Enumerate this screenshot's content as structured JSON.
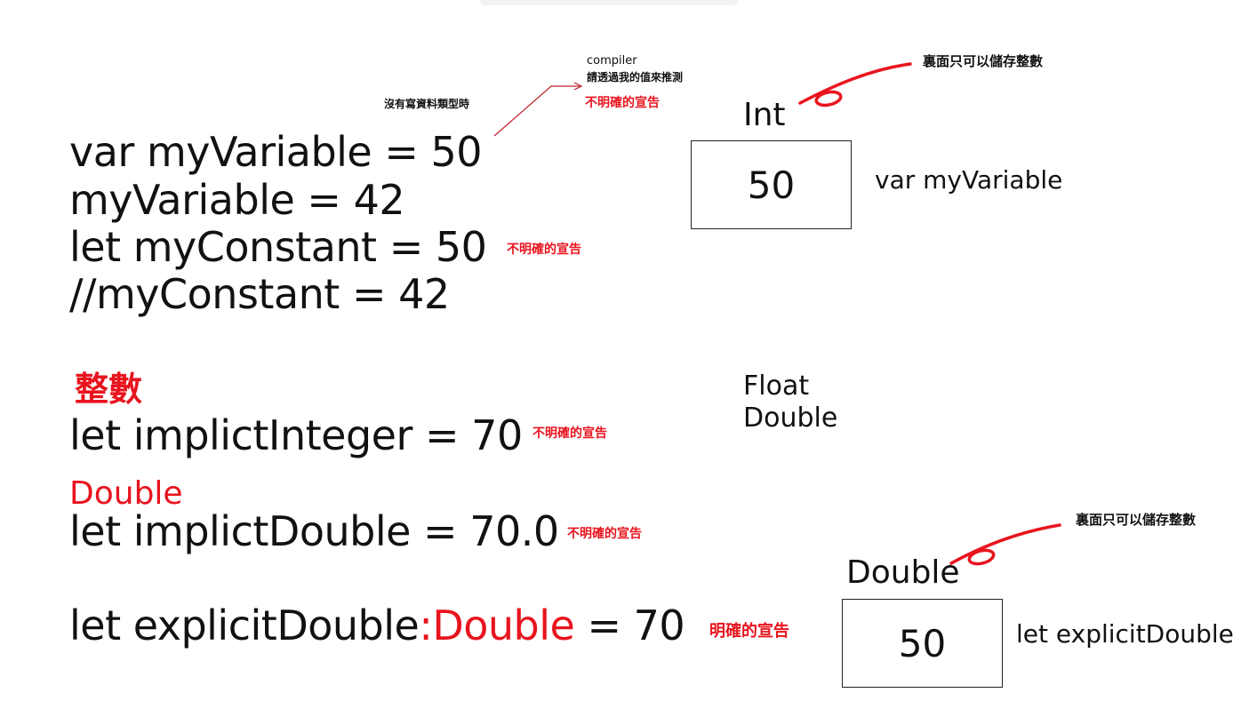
{
  "code_lines": {
    "line1": "var myVariable = 50",
    "line2": "myVariable = 42",
    "line3": "let myConstant = 50",
    "line4": "//myConstant = 42"
  },
  "sections": {
    "integer_heading": "整數",
    "implicit_integer": "let implictInteger = 70",
    "double_heading": "Double",
    "implicit_double": "let implictDouble = 70.0",
    "explicit_prefix": "let explicitDouble",
    "explicit_colon_type": ":Double",
    "explicit_suffix": " = 70"
  },
  "annotations": {
    "no_type_note": "沒有寫資料類型時",
    "compiler_note_line1": "compiler",
    "compiler_note_line2": "請透過我的值來推測",
    "implicit_decl_top": "不明確的宣告",
    "implicit_decl_constant": "不明確的宣告",
    "implicit_decl_integer": "不明確的宣告",
    "implicit_decl_double": "不明確的宣告",
    "explicit_decl": "明確的宣告",
    "int_only_note_top": "裏面只可以儲存整數",
    "int_only_note_bottom": "裏面只可以儲存整數"
  },
  "diagram": {
    "int_type_label": "Int",
    "int_box_value": "50",
    "var_label": "var myVariable",
    "float_label": "Float",
    "double_label": "Double",
    "double_type_label": "Double",
    "double_box_value": "50",
    "let_label": "let explicitDouble"
  },
  "colors": {
    "accent_red": "#e8141e",
    "text": "#111111"
  }
}
